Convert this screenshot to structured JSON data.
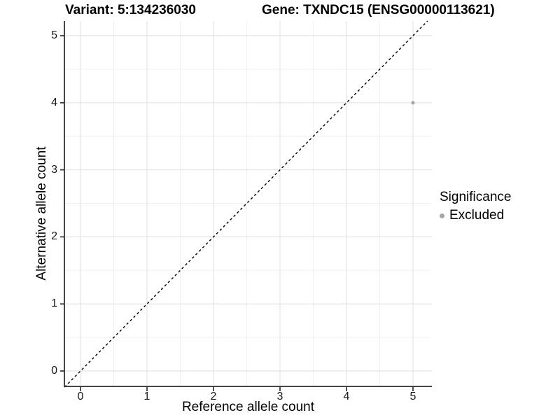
{
  "title": {
    "variant": "Variant: 5:134236030",
    "gene": "Gene: TXNDC15 (ENSG00000113621)"
  },
  "axes": {
    "x": {
      "label": "Reference allele count",
      "ticks": [
        0,
        1,
        2,
        3,
        4,
        5
      ]
    },
    "y": {
      "label": "Alternative allele count",
      "ticks": [
        0,
        1,
        2,
        3,
        4,
        5
      ]
    }
  },
  "legend": {
    "title": "Significance",
    "items": [
      {
        "label": "Excluded",
        "color": "#a5a5a5"
      }
    ]
  },
  "chart_data": {
    "type": "scatter",
    "title": "Variant: 5:134236030 | Gene: TXNDC15 (ENSG00000113621)",
    "xlabel": "Reference allele count",
    "ylabel": "Alternative allele count",
    "xlim": [
      -0.24,
      5.28
    ],
    "ylim": [
      -0.24,
      5.22
    ],
    "series": [
      {
        "name": "Excluded",
        "color": "#a5a5a5",
        "points": [
          {
            "x": 5,
            "y": 4
          }
        ]
      }
    ],
    "identity_line": {
      "equation": "y = x",
      "style": "dashed",
      "color": "#000000"
    },
    "grid": {
      "major_step": 1,
      "minor_step": 0.5,
      "major_color": "#e4e4e4",
      "minor_color": "#f0f0f0"
    },
    "legend_position": "right"
  },
  "colors": {
    "background": "#ffffff",
    "axis_line": "#333333",
    "tick_mark": "#333333",
    "point": "#a5a5a5"
  }
}
